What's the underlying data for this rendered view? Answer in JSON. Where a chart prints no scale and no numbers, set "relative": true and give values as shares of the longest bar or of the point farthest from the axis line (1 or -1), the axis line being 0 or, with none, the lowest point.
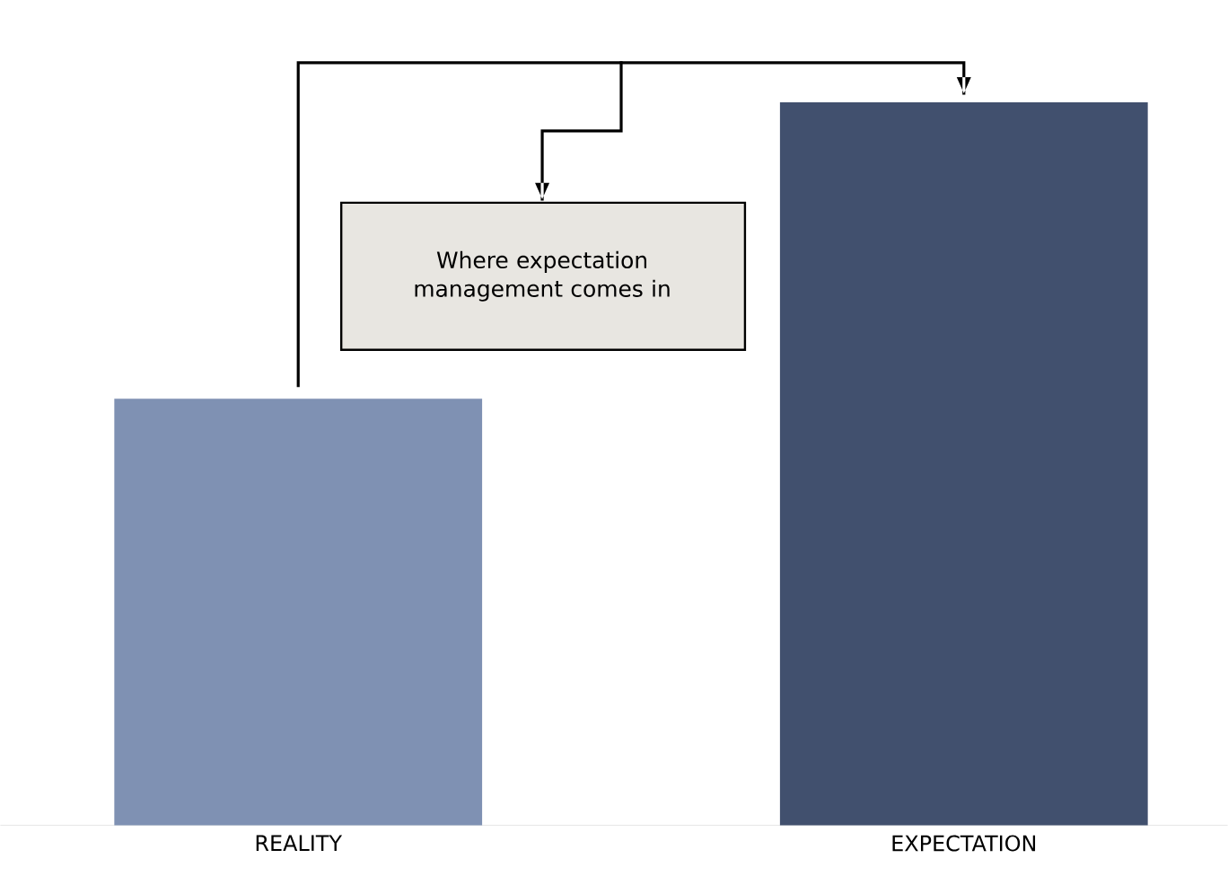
{
  "chart_data": {
    "type": "bar",
    "relative": true,
    "categories": [
      "REALITY",
      "EXPECTATION"
    ],
    "values": [
      0.59,
      1
    ],
    "colors": [
      "#7f91b3",
      "#41506e"
    ],
    "annotations": [
      "Where expectation management comes in"
    ]
  }
}
